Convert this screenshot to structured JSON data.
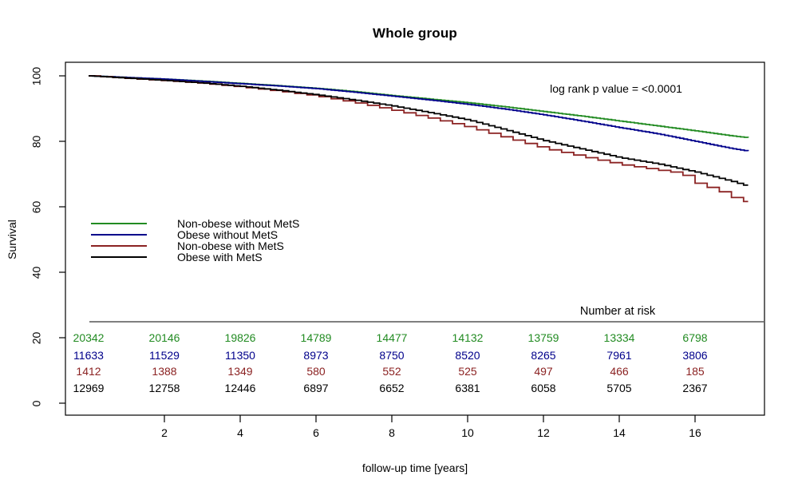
{
  "title": "Whole group",
  "pvalue_annotation": "log rank p value = <0.0001",
  "chart_data": {
    "type": "line",
    "subtype": "kaplan-meier-survival-step-curves",
    "title": "Whole group",
    "xlabel": "follow-up time [years]",
    "ylabel": "Survival",
    "xlim": [
      0,
      17.8
    ],
    "ylim": [
      0,
      105
    ],
    "x_ticks": [
      2,
      4,
      6,
      8,
      10,
      12,
      14,
      16
    ],
    "y_ticks": [
      0,
      20,
      40,
      60,
      80,
      100
    ],
    "grid": false,
    "legend_position": "middle-left",
    "annotation": "log rank p value = <0.0001",
    "series": [
      {
        "name": "Non-obese without MetS",
        "color": "#228B22",
        "points": [
          [
            0,
            100
          ],
          [
            1,
            99.5
          ],
          [
            2,
            99
          ],
          [
            3,
            98.4
          ],
          [
            4,
            97.7
          ],
          [
            5,
            97
          ],
          [
            6,
            96.2
          ],
          [
            7,
            95.2
          ],
          [
            8,
            94
          ],
          [
            9,
            92.9
          ],
          [
            10,
            91.8
          ],
          [
            11,
            90.5
          ],
          [
            12,
            89.1
          ],
          [
            13,
            87.7
          ],
          [
            14,
            86.2
          ],
          [
            15,
            84.7
          ],
          [
            16,
            83.2
          ],
          [
            17,
            81.6
          ],
          [
            17.4,
            81.1
          ]
        ]
      },
      {
        "name": "Obese without MetS",
        "color": "#00008B",
        "points": [
          [
            0,
            100
          ],
          [
            1,
            99.5
          ],
          [
            2,
            99
          ],
          [
            3,
            98.3
          ],
          [
            4,
            97.6
          ],
          [
            5,
            96.9
          ],
          [
            6,
            96.1
          ],
          [
            7,
            95
          ],
          [
            8,
            93.8
          ],
          [
            9,
            92.6
          ],
          [
            10,
            91.3
          ],
          [
            11,
            89.8
          ],
          [
            12,
            88.1
          ],
          [
            13,
            86.2
          ],
          [
            14,
            84.2
          ],
          [
            15,
            82.3
          ],
          [
            16,
            80
          ],
          [
            17,
            77.7
          ],
          [
            17.4,
            77
          ]
        ]
      },
      {
        "name": "Non-obese with MetS",
        "color": "#8B2222",
        "points": [
          [
            0,
            100
          ],
          [
            1,
            99.2
          ],
          [
            2,
            98.5
          ],
          [
            3,
            97.7
          ],
          [
            4,
            96.6
          ],
          [
            5,
            95.3
          ],
          [
            6,
            93.8
          ],
          [
            7,
            91.8
          ],
          [
            8,
            89.5
          ],
          [
            9,
            87
          ],
          [
            10,
            84.3
          ],
          [
            11,
            81
          ],
          [
            12,
            77.8
          ],
          [
            13,
            75.3
          ],
          [
            14,
            72.9
          ],
          [
            15,
            71.2
          ],
          [
            15.6,
            70.2
          ],
          [
            16,
            67.2
          ],
          [
            16.6,
            64.8
          ],
          [
            17,
            62.6
          ],
          [
            17.4,
            61.2
          ]
        ]
      },
      {
        "name": "Obese with MetS",
        "color": "#000000",
        "points": [
          [
            0,
            100
          ],
          [
            1,
            99.3
          ],
          [
            2,
            98.6
          ],
          [
            3,
            97.8
          ],
          [
            4,
            96.8
          ],
          [
            5,
            95.6
          ],
          [
            6,
            94.2
          ],
          [
            7,
            92.6
          ],
          [
            8,
            90.8
          ],
          [
            9,
            88.7
          ],
          [
            10,
            86.5
          ],
          [
            11,
            83.4
          ],
          [
            12,
            80.2
          ],
          [
            13,
            77.6
          ],
          [
            14,
            75
          ],
          [
            15,
            73.1
          ],
          [
            16,
            70.6
          ],
          [
            17,
            67.6
          ],
          [
            17.4,
            66.2
          ]
        ]
      }
    ],
    "number_at_risk": {
      "label": "Number at risk",
      "times": [
        0,
        2,
        4,
        6,
        8,
        10,
        12,
        14,
        16
      ],
      "rows": [
        {
          "name": "Non-obese without MetS",
          "color": "#228B22",
          "values": [
            20342,
            20146,
            19826,
            14789,
            14477,
            14132,
            13759,
            13334,
            6798
          ]
        },
        {
          "name": "Obese without MetS",
          "color": "#00008B",
          "values": [
            11633,
            11529,
            11350,
            8973,
            8750,
            8520,
            8265,
            7961,
            3806
          ]
        },
        {
          "name": "Non-obese with MetS",
          "color": "#8B2222",
          "values": [
            1412,
            1388,
            1349,
            580,
            552,
            525,
            497,
            466,
            185
          ]
        },
        {
          "name": "Obese with MetS",
          "color": "#000000",
          "values": [
            12969,
            12758,
            12446,
            6897,
            6652,
            6381,
            6058,
            5705,
            2367
          ]
        }
      ]
    }
  }
}
